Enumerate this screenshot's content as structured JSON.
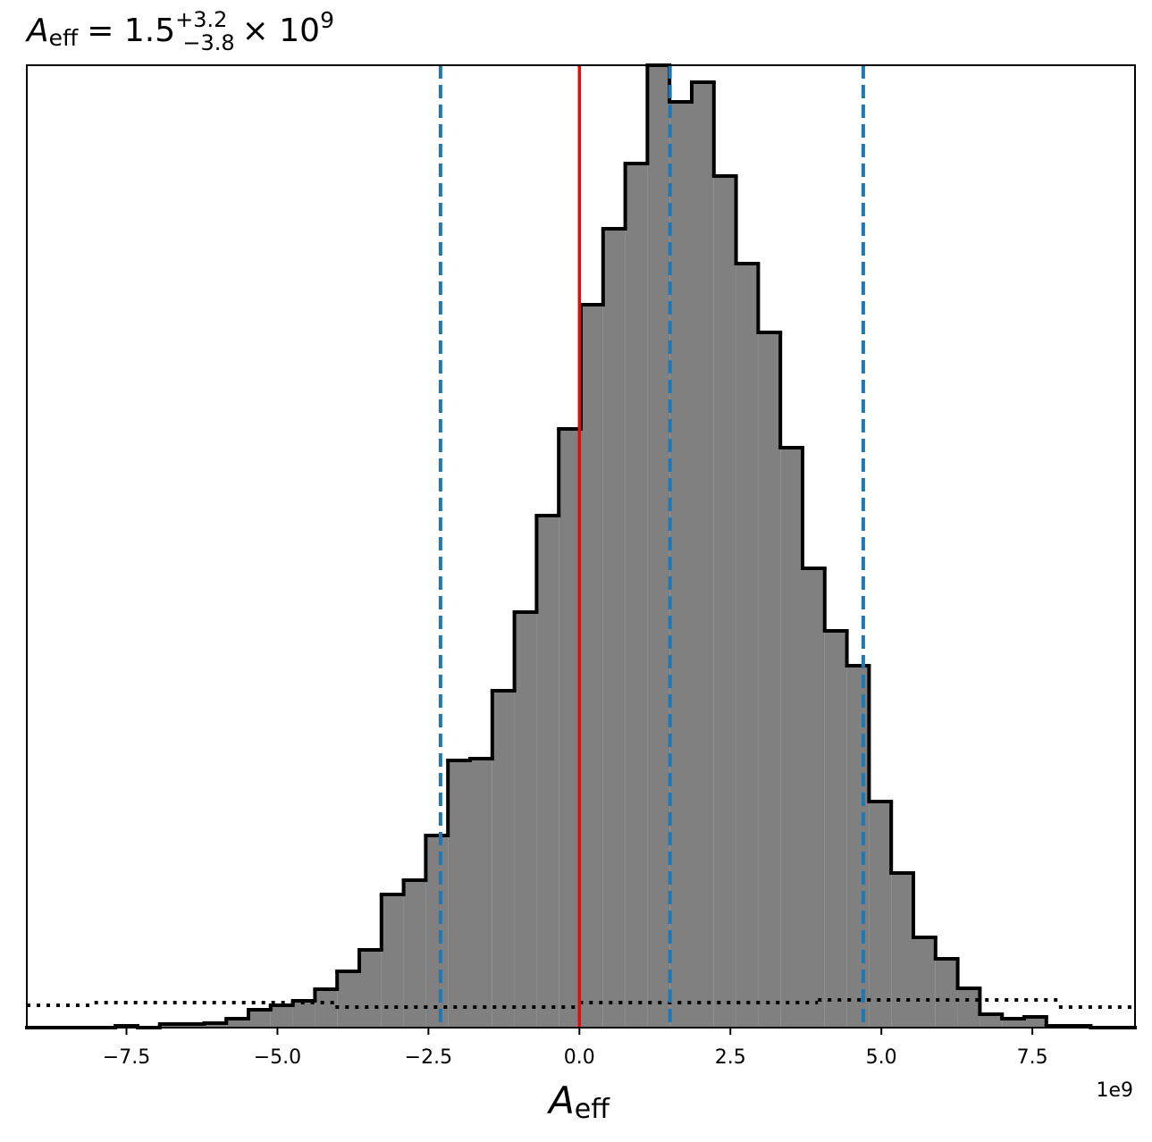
{
  "chart_data": {
    "type": "histogram",
    "title": {
      "symbol": "A",
      "subscript": "eff",
      "equals": "= 1.5",
      "upper": "+3.2",
      "lower": "−3.8",
      "times": "× 10",
      "exponent": "9"
    },
    "xlabel": {
      "symbol": "A",
      "subscript": "eff"
    },
    "x_offset_label": "1e9",
    "xlim": [
      -9.15,
      9.2
    ],
    "xticks": [
      {
        "value": -7.5,
        "label": "−7.5"
      },
      {
        "value": -5,
        "label": "−5.0"
      },
      {
        "value": -2.5,
        "label": "−2.5"
      },
      {
        "value": 0,
        "label": "0.0"
      },
      2.5,
      {
        "value": 5,
        "label": "5.0"
      },
      7.5
    ],
    "ylim": [
      0,
      1077
    ],
    "bins": [
      -9.15,
      -8.783,
      -8.416,
      -8.049,
      -7.682,
      -7.315,
      -6.948,
      -6.581,
      -6.214,
      -5.847,
      -5.48,
      -5.113,
      -4.746,
      -4.379,
      -4.012,
      -3.645,
      -3.278,
      -2.911,
      -2.544,
      -2.177,
      -1.81,
      -1.443,
      -1.076,
      -0.709,
      -0.342,
      0.025,
      0.392,
      0.759,
      1.126,
      1.493,
      1.86,
      2.227,
      2.594,
      2.961,
      3.328,
      3.695,
      4.062,
      4.429,
      4.796,
      5.163,
      5.53,
      5.897,
      6.264,
      6.631,
      6.998,
      7.365,
      7.732,
      8.099,
      8.466,
      8.833,
      9.2
    ],
    "values": [
      0,
      0,
      0,
      0,
      2,
      0,
      4,
      4,
      5,
      10,
      20,
      25,
      30,
      43,
      63,
      87,
      149,
      165,
      215,
      299,
      301,
      377,
      465,
      573,
      670,
      809,
      894,
      967,
      1077,
      1036,
      1058,
      953,
      855,
      778,
      649,
      514,
      444,
      405,
      253,
      173,
      101,
      77,
      44,
      15,
      10,
      12,
      2,
      2,
      0,
      0
    ],
    "color": "#808080",
    "edgecolor": "#000000",
    "prior": {
      "bins": [
        -9.15,
        -8.03,
        -4.04,
        0,
        3.95,
        7.94,
        9.2
      ],
      "values": [
        25,
        28,
        23,
        28,
        31,
        23
      ],
      "color": "#000000"
    },
    "truth": {
      "value": 0,
      "color": "#ff0000"
    },
    "quantiles": {
      "values": [
        -2.3,
        1.5,
        4.7
      ],
      "color": "#1f77b4"
    }
  }
}
